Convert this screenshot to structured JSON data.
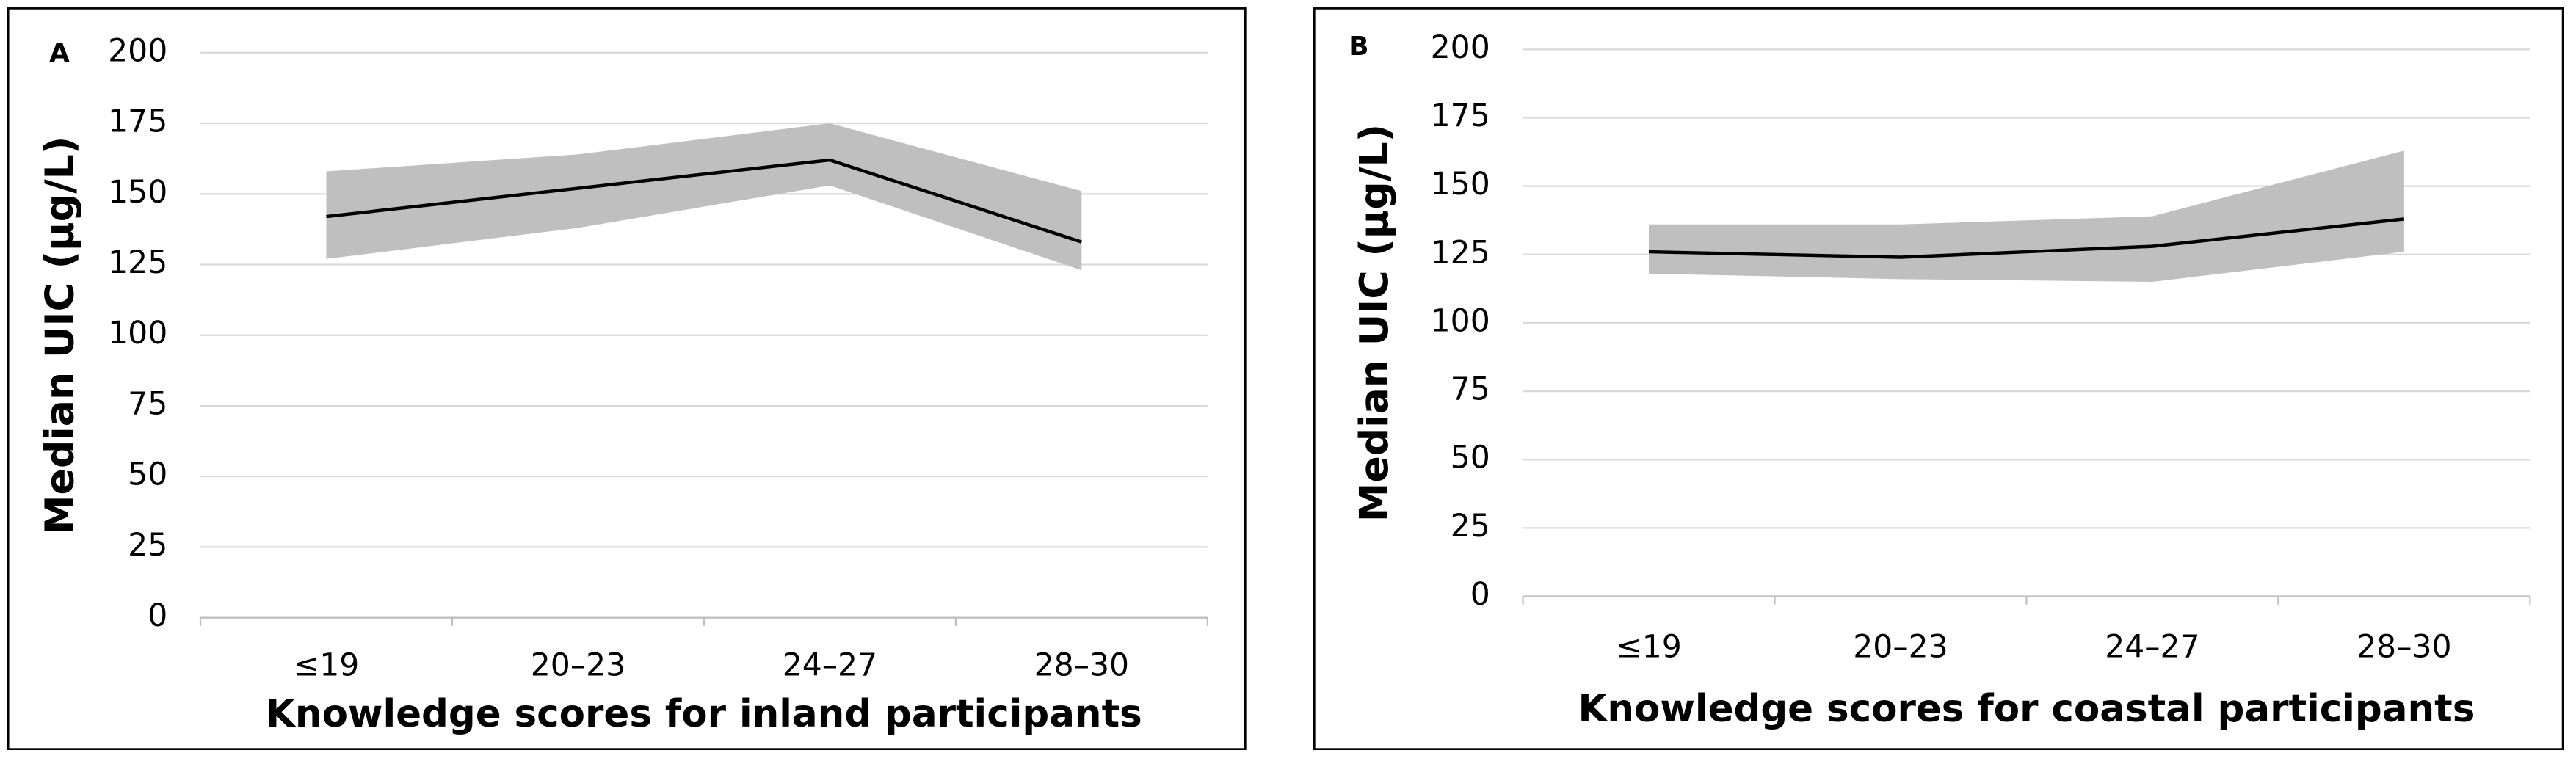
{
  "chart_data": [
    {
      "type": "line",
      "panel_label": "A",
      "x_label": "Knowledge scores for inland participants",
      "y_label": "Median UIC (μg/L)",
      "categories": [
        "≤19",
        "20–23",
        "24–27",
        "28–30"
      ],
      "values": [
        142,
        152,
        162,
        133
      ],
      "band_lower": [
        127,
        138,
        153,
        123
      ],
      "band_upper": [
        158,
        164,
        175,
        151
      ],
      "color": "#000000",
      "band_color": "#bfbfbf",
      "ylim": [
        0,
        200
      ],
      "yticks": [
        0,
        25,
        50,
        75,
        100,
        125,
        150,
        175,
        200
      ],
      "grid": true
    },
    {
      "type": "line",
      "panel_label": "B",
      "x_label": "Knowledge scores for coastal participants",
      "y_label": "Median UIC (μg/L)",
      "categories": [
        "≤19",
        "20–23",
        "24–27",
        "28–30"
      ],
      "values": [
        126,
        124,
        128,
        138
      ],
      "band_lower": [
        118,
        116,
        115,
        126
      ],
      "band_upper": [
        136,
        136,
        139,
        163
      ],
      "color": "#000000",
      "band_color": "#bfbfbf",
      "ylim": [
        0,
        200
      ],
      "yticks": [
        0,
        25,
        50,
        75,
        100,
        125,
        150,
        175,
        200
      ],
      "grid": true
    }
  ]
}
